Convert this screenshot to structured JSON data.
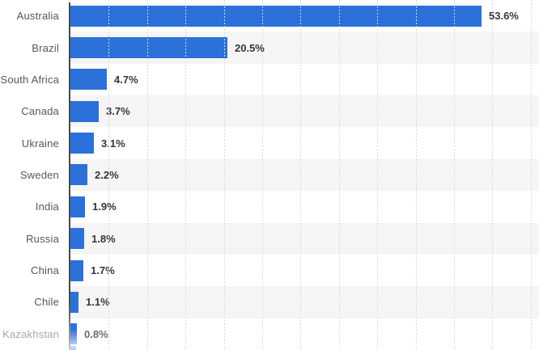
{
  "chart_data": {
    "type": "bar",
    "orientation": "horizontal",
    "title": "",
    "xlabel": "",
    "ylabel": "",
    "categories": [
      "Australia",
      "Brazil",
      "South Africa",
      "Canada",
      "Ukraine",
      "Sweden",
      "India",
      "Russia",
      "China",
      "Chile",
      "Kazakhstan"
    ],
    "values": [
      53.6,
      20.5,
      4.7,
      3.7,
      3.1,
      2.2,
      1.9,
      1.8,
      1.7,
      1.1,
      0.8
    ],
    "value_labels": [
      "53.6%",
      "20.5%",
      "4.7%",
      "3.7%",
      "3.1%",
      "2.2%",
      "1.9%",
      "1.8%",
      "1.7%",
      "1.1%",
      "0.8%"
    ],
    "unit": "%",
    "xlim": [
      0,
      61
    ],
    "tick_interval": 5,
    "grid": "vertical-dotted",
    "legend": "none",
    "striped_row_indices": [
      1,
      3,
      5,
      7,
      9
    ],
    "faded_last_row": true,
    "colors": {
      "bar": "#2c71d9",
      "bar_faded_bottom": "#b7cdf2",
      "row_stripe": "#f5f5f5",
      "gridline": "#d9d9d9",
      "axis_line": "#4a4a4a",
      "category_label": "#565656",
      "value_label": "#363636",
      "faded_category_label": "#a9a9a9",
      "faded_value_label": "#6e6e6e"
    }
  }
}
